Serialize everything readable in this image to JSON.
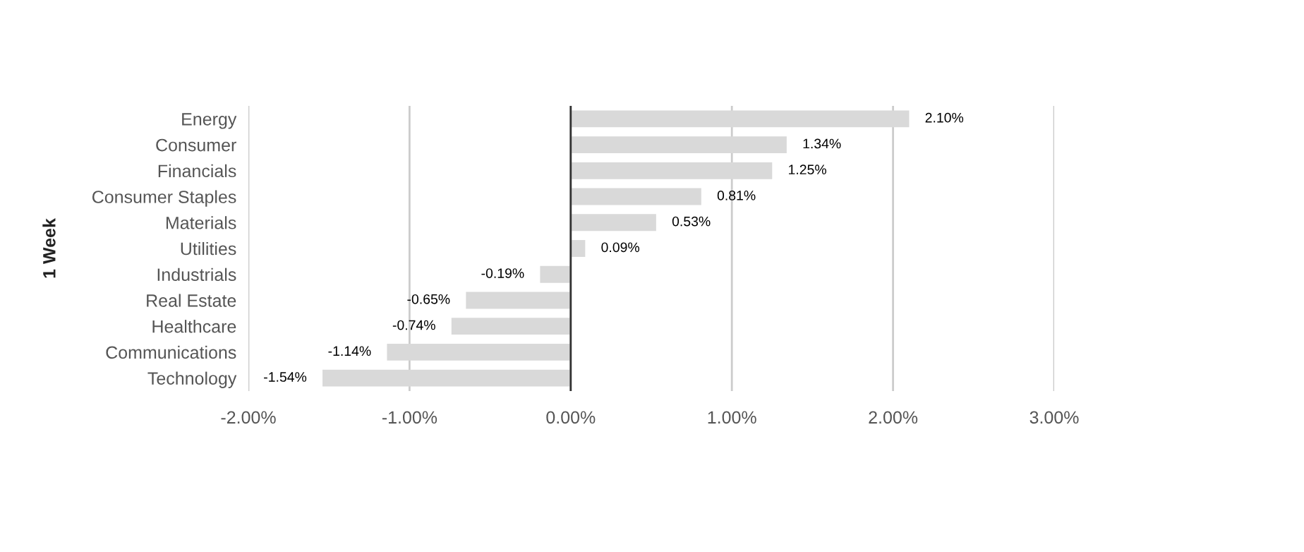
{
  "chart_data": {
    "type": "bar",
    "orientation": "horizontal",
    "ylabel": "1 Week",
    "categories": [
      "Energy",
      "Consumer",
      "Financials",
      "Consumer Staples",
      "Materials",
      "Utilities",
      "Industrials",
      "Real Estate",
      "Healthcare",
      "Communications",
      "Technology"
    ],
    "values": [
      2.1,
      1.34,
      1.25,
      0.81,
      0.53,
      0.09,
      -0.19,
      -0.65,
      -0.74,
      -1.14,
      -1.54
    ],
    "value_labels": [
      "2.10%",
      "1.34%",
      "1.25%",
      "0.81%",
      "0.53%",
      "0.09%",
      "-0.19%",
      "-0.65%",
      "-0.74%",
      "-1.14%",
      "-1.54%"
    ],
    "color": "#d9d9d9",
    "xlim": [
      -2,
      3
    ],
    "xticks": [
      {
        "value": -2,
        "label": "-2.00%"
      },
      {
        "value": -1,
        "label": "-1.00%"
      },
      {
        "value": 0,
        "label": "0.00%"
      },
      {
        "value": 1,
        "label": "1.00%"
      },
      {
        "value": 2,
        "label": "2.00%"
      },
      {
        "value": 3,
        "label": "3.00%"
      }
    ],
    "ref_lines": [
      {
        "axis": "x",
        "value": 0,
        "color": "#333333"
      }
    ],
    "grid": "x",
    "legend": false
  }
}
